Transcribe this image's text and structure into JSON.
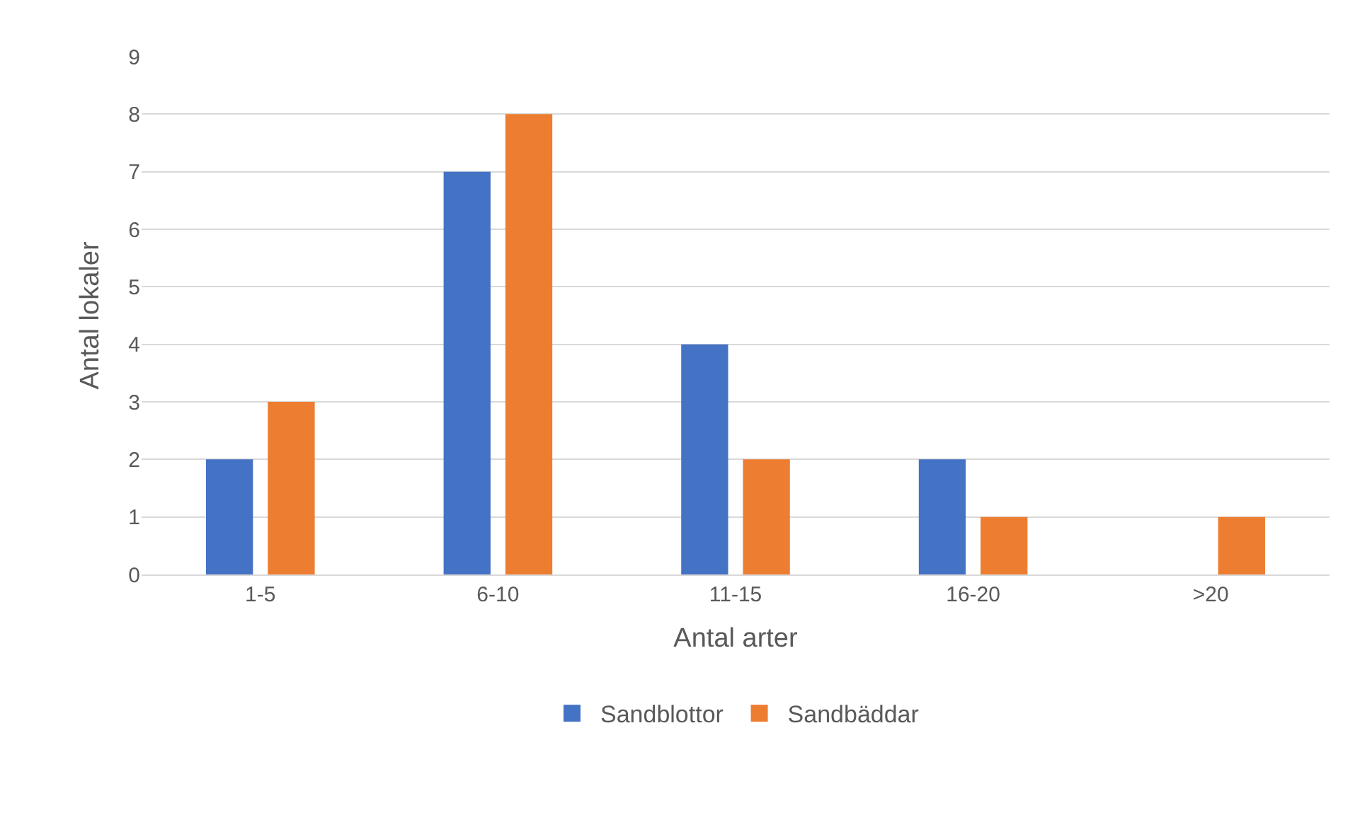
{
  "chart_data": {
    "type": "bar",
    "xlabel": "Antal arter",
    "ylabel": "Antal lokaler",
    "categories": [
      "1-5",
      "6-10",
      "11-15",
      "16-20",
      ">20"
    ],
    "series": [
      {
        "name": "Sandblottor",
        "color": "#4472c4",
        "values": [
          2,
          7,
          4,
          2,
          0
        ]
      },
      {
        "name": "Sandbäddar",
        "color": "#ed7d31",
        "values": [
          3,
          8,
          2,
          1,
          1
        ]
      }
    ],
    "ylim": [
      0,
      9
    ],
    "yticks": [
      0,
      1,
      2,
      3,
      4,
      5,
      6,
      7,
      8,
      9
    ],
    "grid": "y",
    "legend": "bottom"
  }
}
